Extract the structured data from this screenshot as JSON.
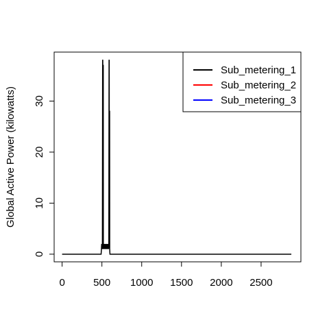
{
  "chart_data": {
    "type": "line",
    "title": "",
    "xlabel": "",
    "ylabel": "Global Active Power (kilowatts)",
    "xlim": [
      -100,
      3000
    ],
    "ylim": [
      -1.5,
      39.6
    ],
    "xticks": [
      0,
      500,
      1000,
      1500,
      2000,
      2500
    ],
    "yticks": [
      0,
      10,
      20,
      30
    ],
    "grid": false,
    "legend_position": "top-right",
    "series": [
      {
        "name": "Sub_metering_1",
        "color": "#000000",
        "points": [
          [
            0,
            0
          ],
          [
            490,
            0
          ],
          [
            494,
            1
          ],
          [
            497,
            2
          ],
          [
            500,
            1
          ],
          [
            503,
            2
          ],
          [
            506,
            1
          ],
          [
            509,
            38
          ],
          [
            511,
            38
          ],
          [
            512,
            1
          ],
          [
            515,
            37
          ],
          [
            517,
            37
          ],
          [
            518,
            1
          ],
          [
            521,
            2
          ],
          [
            524,
            1
          ],
          [
            527,
            2
          ],
          [
            530,
            1
          ],
          [
            533,
            2
          ],
          [
            536,
            1
          ],
          [
            539,
            2
          ],
          [
            542,
            1
          ],
          [
            545,
            2
          ],
          [
            548,
            1
          ],
          [
            551,
            2
          ],
          [
            554,
            1
          ],
          [
            557,
            2
          ],
          [
            560,
            1
          ],
          [
            563,
            2
          ],
          [
            566,
            1
          ],
          [
            569,
            2
          ],
          [
            572,
            1
          ],
          [
            575,
            2
          ],
          [
            578,
            1
          ],
          [
            581,
            2
          ],
          [
            584,
            1
          ],
          [
            587,
            2
          ],
          [
            590,
            38
          ],
          [
            592,
            38
          ],
          [
            593,
            2
          ],
          [
            595,
            28
          ],
          [
            597,
            28
          ],
          [
            598,
            1
          ],
          [
            601,
            0
          ],
          [
            2880,
            0
          ]
        ]
      },
      {
        "name": "Sub_metering_2",
        "color": "#ff0000",
        "points": []
      },
      {
        "name": "Sub_metering_3",
        "color": "#0000ff",
        "points": []
      }
    ]
  }
}
